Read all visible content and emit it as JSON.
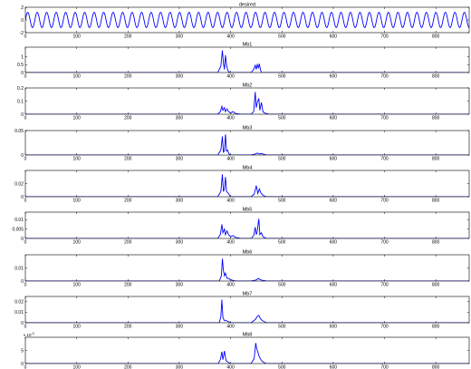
{
  "chart_data": [
    {
      "type": "line",
      "title": "desired",
      "xlim": [
        0,
        865
      ],
      "ylim": [
        -2,
        2
      ],
      "yticks": [
        -2,
        0,
        2
      ],
      "ytick_labels": [
        "-2",
        "0",
        "2"
      ],
      "xticks": [
        0,
        100,
        200,
        300,
        400,
        500,
        600,
        700,
        800
      ],
      "xtick_labels": [
        "0",
        "100",
        "200",
        "300",
        "400",
        "500",
        "600",
        "700",
        "800"
      ],
      "series": [
        {
          "kind": "sine",
          "amplitude": 1.2,
          "period": 18.5,
          "x_start": 0,
          "x_end": 865
        }
      ]
    },
    {
      "type": "line",
      "title": "Mb1",
      "xlim": [
        0,
        865
      ],
      "ylim": [
        0,
        1.6
      ],
      "yticks": [
        0,
        0.5,
        1
      ],
      "ytick_labels": [
        "0",
        "0.5",
        "1"
      ],
      "xticks": [
        0,
        100,
        200,
        300,
        400,
        500,
        600,
        700,
        800
      ],
      "xtick_labels": [
        "0",
        "100",
        "200",
        "300",
        "400",
        "500",
        "600",
        "700",
        "800"
      ],
      "series": [
        {
          "x": [
            0,
            375,
            381,
            384,
            386,
            388,
            390,
            392,
            394,
            396,
            400,
            410,
            440,
            445,
            448,
            450,
            452,
            454,
            456,
            458,
            460,
            470,
            865
          ],
          "y": [
            0,
            0,
            0.4,
            1.4,
            0.6,
            0.2,
            1.1,
            0.5,
            0.2,
            0.05,
            0,
            0,
            0,
            0.2,
            0.45,
            0.2,
            0.5,
            0.3,
            0.55,
            0.2,
            0,
            0,
            0
          ]
        }
      ]
    },
    {
      "type": "line",
      "title": "Mb2",
      "xlim": [
        0,
        865
      ],
      "ylim": [
        0,
        0.2
      ],
      "yticks": [
        0,
        0.1,
        0.2
      ],
      "ytick_labels": [
        "0",
        "0.1",
        "0.2"
      ],
      "xticks": [
        0,
        100,
        200,
        300,
        400,
        500,
        600,
        700,
        800
      ],
      "xtick_labels": [
        "0",
        "100",
        "200",
        "300",
        "400",
        "500",
        "600",
        "700",
        "800"
      ],
      "series": [
        {
          "x": [
            0,
            375,
            380,
            383,
            385,
            388,
            390,
            393,
            396,
            400,
            405,
            410,
            420,
            440,
            445,
            448,
            450,
            452,
            455,
            457,
            460,
            463,
            466,
            470,
            475,
            865
          ],
          "y": [
            0,
            0,
            0.02,
            0.06,
            0.03,
            0.05,
            0.02,
            0.04,
            0.02,
            0.01,
            0.02,
            0.005,
            0,
            0,
            0.02,
            0.17,
            0.05,
            0.09,
            0.12,
            0.03,
            0.09,
            0.02,
            0.01,
            0.005,
            0,
            0
          ]
        }
      ]
    },
    {
      "type": "line",
      "title": "Mb3",
      "xlim": [
        0,
        865
      ],
      "ylim": [
        0,
        0.05
      ],
      "yticks": [
        0,
        0.05
      ],
      "ytick_labels": [
        "0",
        "0.05"
      ],
      "xticks": [
        0,
        100,
        200,
        300,
        400,
        500,
        600,
        700,
        800
      ],
      "xtick_labels": [
        "0",
        "100",
        "200",
        "300",
        "400",
        "500",
        "600",
        "700",
        "800"
      ],
      "series": [
        {
          "x": [
            0,
            375,
            381,
            384,
            386,
            388,
            390,
            392,
            394,
            397,
            400,
            440,
            448,
            452,
            456,
            460,
            470,
            865
          ],
          "y": [
            0,
            0,
            0.01,
            0.038,
            0.005,
            0.01,
            0.042,
            0.008,
            0.01,
            0.002,
            0,
            0,
            0.002,
            0.004,
            0.002,
            0.003,
            0,
            0
          ]
        }
      ]
    },
    {
      "type": "line",
      "title": "Mb4",
      "xlim": [
        0,
        865
      ],
      "ylim": [
        0,
        0.04
      ],
      "yticks": [
        0,
        0.02
      ],
      "ytick_labels": [
        "0",
        "0.02"
      ],
      "xticks": [
        0,
        100,
        200,
        300,
        400,
        500,
        600,
        700,
        800
      ],
      "xtick_labels": [
        "0",
        "100",
        "200",
        "300",
        "400",
        "500",
        "600",
        "700",
        "800"
      ],
      "series": [
        {
          "x": [
            0,
            375,
            381,
            384,
            386,
            388,
            390,
            392,
            395,
            398,
            400,
            440,
            446,
            450,
            453,
            456,
            459,
            462,
            466,
            470,
            865
          ],
          "y": [
            0,
            0,
            0.008,
            0.034,
            0.008,
            0.012,
            0.03,
            0.008,
            0.006,
            0.002,
            0,
            0,
            0.004,
            0.017,
            0.005,
            0.012,
            0.006,
            0.003,
            0.001,
            0,
            0
          ]
        }
      ]
    },
    {
      "type": "line",
      "title": "Mb5",
      "xlim": [
        0,
        865
      ],
      "ylim": [
        0,
        0.014
      ],
      "yticks": [
        0,
        0.005,
        0.01
      ],
      "ytick_labels": [
        "0",
        "0.005",
        "0.01"
      ],
      "xticks": [
        0,
        100,
        200,
        300,
        400,
        500,
        600,
        700,
        800
      ],
      "xtick_labels": [
        "0",
        "100",
        "200",
        "300",
        "400",
        "500",
        "600",
        "700",
        "800"
      ],
      "series": [
        {
          "x": [
            0,
            375,
            380,
            383,
            385,
            388,
            390,
            393,
            396,
            400,
            405,
            410,
            420,
            440,
            445,
            448,
            450,
            452,
            455,
            457,
            460,
            463,
            466,
            470,
            865
          ],
          "y": [
            0,
            0,
            0.002,
            0.0075,
            0.003,
            0.005,
            0.002,
            0.004,
            0.002,
            0.001,
            0.0015,
            0.0005,
            0,
            0,
            0.0015,
            0.006,
            0.002,
            0.004,
            0.0105,
            0.002,
            0.003,
            0.001,
            0.0005,
            0,
            0
          ]
        }
      ]
    },
    {
      "type": "line",
      "title": "Mb6",
      "xlim": [
        0,
        865
      ],
      "ylim": [
        0,
        0.02
      ],
      "yticks": [
        0,
        0.01
      ],
      "ytick_labels": [
        "0",
        "0.01"
      ],
      "xticks": [
        0,
        100,
        200,
        300,
        400,
        500,
        600,
        700,
        800
      ],
      "xtick_labels": [
        "0",
        "100",
        "200",
        "300",
        "400",
        "500",
        "600",
        "700",
        "800"
      ],
      "series": [
        {
          "x": [
            0,
            378,
            382,
            384,
            386,
            388,
            390,
            393,
            396,
            400,
            410,
            440,
            450,
            454,
            458,
            462,
            470,
            865
          ],
          "y": [
            0,
            0,
            0.004,
            0.017,
            0.008,
            0.004,
            0.006,
            0.002,
            0.002,
            0.001,
            0,
            0,
            0.0008,
            0.002,
            0.001,
            0.0006,
            0,
            0
          ]
        }
      ]
    },
    {
      "type": "line",
      "title": "Mb7",
      "xlim": [
        0,
        865
      ],
      "ylim": [
        0,
        0.025
      ],
      "yticks": [
        0,
        0.01,
        0.02
      ],
      "ytick_labels": [
        "0",
        "0.01",
        "0.02"
      ],
      "xticks": [
        0,
        100,
        200,
        300,
        400,
        500,
        600,
        700,
        800
      ],
      "xtick_labels": [
        "0",
        "100",
        "200",
        "300",
        "400",
        "500",
        "600",
        "700",
        "800"
      ],
      "series": [
        {
          "x": [
            0,
            378,
            381,
            383,
            385,
            388,
            392,
            396,
            400,
            440,
            448,
            452,
            455,
            458,
            462,
            466,
            470,
            865
          ],
          "y": [
            0,
            0,
            0.006,
            0.022,
            0.005,
            0.002,
            0.002,
            0.001,
            0,
            0,
            0.003,
            0.006,
            0.007,
            0.004,
            0.002,
            0.001,
            0,
            0
          ]
        }
      ]
    },
    {
      "type": "line",
      "title": "Mb8",
      "xlim": [
        0,
        865
      ],
      "ylim": [
        0,
        10
      ],
      "y_exponent_label": "x 10",
      "y_exponent_power": "-3",
      "yticks": [
        0,
        5
      ],
      "ytick_labels": [
        "0",
        "5"
      ],
      "xticks": [
        0,
        100,
        200,
        300,
        400,
        500,
        600,
        700,
        800
      ],
      "xtick_labels": [
        "0",
        "100",
        "200",
        "300",
        "400",
        "500",
        "600",
        "700",
        "800"
      ],
      "series": [
        {
          "x": [
            0,
            376,
            380,
            383,
            385,
            388,
            391,
            395,
            400,
            440,
            446,
            449,
            451,
            453,
            456,
            459,
            462,
            466,
            470,
            865
          ],
          "y": [
            0,
            0,
            1.5,
            4.5,
            1.5,
            4.8,
            1.2,
            0.5,
            0,
            0,
            2,
            7.8,
            5.5,
            4.5,
            2.5,
            1.5,
            0.8,
            0.3,
            0,
            0
          ]
        }
      ]
    }
  ],
  "colors": {
    "line": "#0000ff",
    "axis": "#000000",
    "background": "#ffffff"
  }
}
